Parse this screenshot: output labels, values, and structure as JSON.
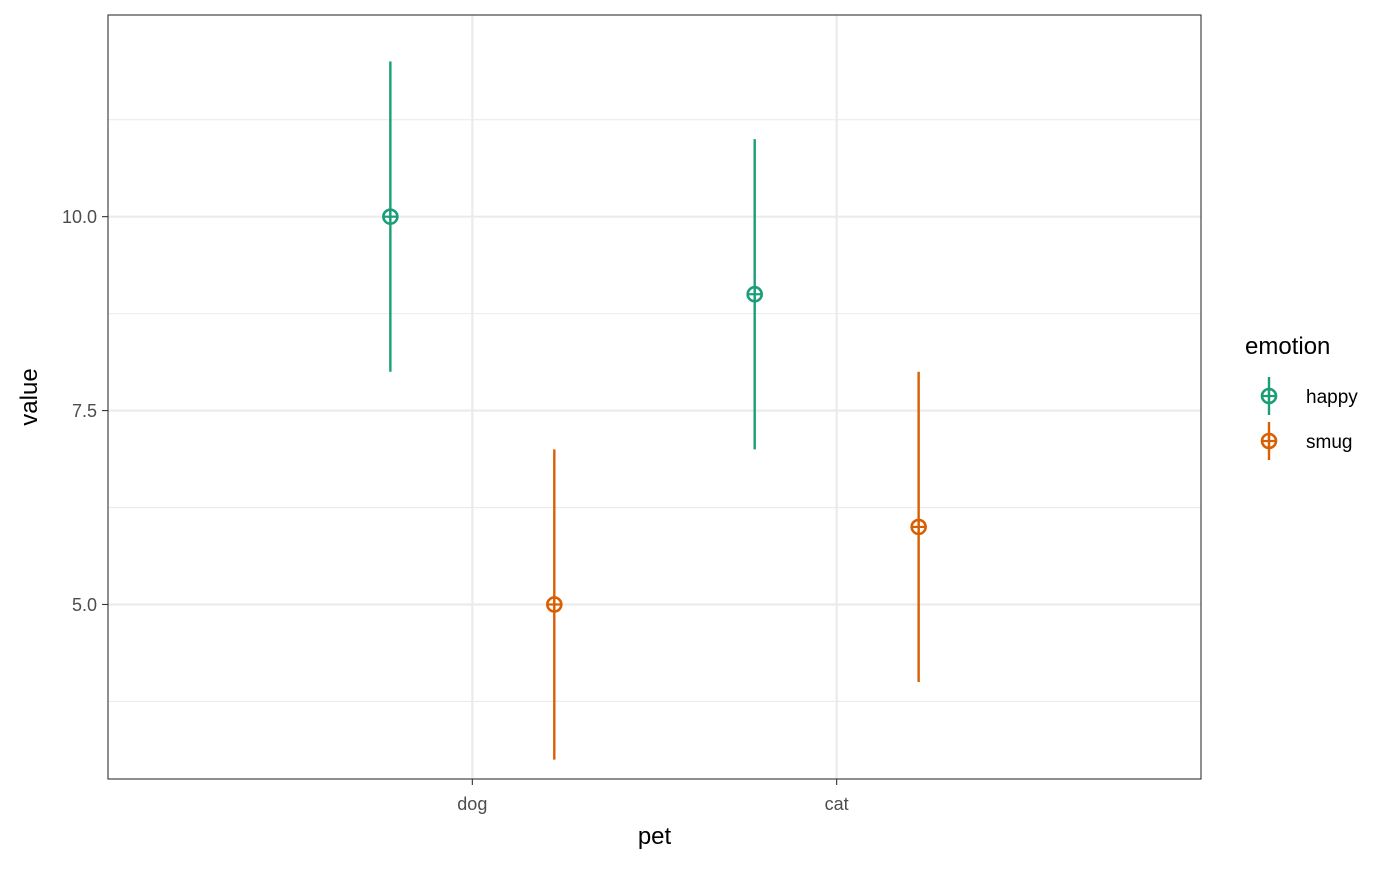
{
  "chart_data": {
    "type": "scatter",
    "subtype": "pointrange",
    "xlabel": "pet",
    "ylabel": "value",
    "categories": [
      "dog",
      "cat"
    ],
    "ylim": [
      2.75,
      12.6
    ],
    "y_ticks": [
      5.0,
      7.5,
      10.0
    ],
    "y_tick_labels": [
      "5.0",
      "7.5",
      "10.0"
    ],
    "y_minor_ticks": [
      3.75,
      6.25,
      8.75,
      11.25
    ],
    "grid": true,
    "theme": "bw",
    "dodge_groups": [
      "happy",
      "smug"
    ],
    "legend": {
      "title": "emotion",
      "position": "right",
      "entries": [
        "happy",
        "smug"
      ]
    },
    "series": [
      {
        "name": "happy",
        "color": "#1b9e77",
        "points": [
          {
            "x": "dog",
            "y": 10,
            "ymin": 8,
            "ymax": 12
          },
          {
            "x": "cat",
            "y": 9,
            "ymin": 7,
            "ymax": 11
          }
        ]
      },
      {
        "name": "smug",
        "color": "#d95f02",
        "points": [
          {
            "x": "dog",
            "y": 5,
            "ymin": 3,
            "ymax": 7
          },
          {
            "x": "cat",
            "y": 6,
            "ymin": 4,
            "ymax": 8
          }
        ]
      }
    ]
  }
}
